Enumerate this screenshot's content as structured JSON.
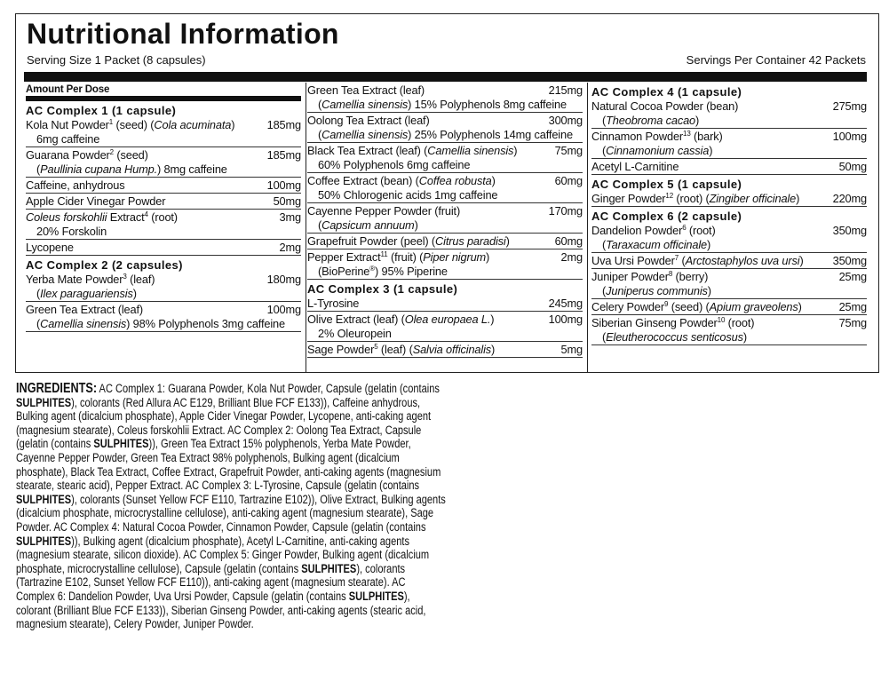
{
  "header": {
    "title": "Nutritional Information",
    "serving_size": "Serving Size 1 Packet (8 capsules)",
    "servings_per_container": "Servings Per Container 42 Packets"
  },
  "columns": [
    [
      {
        "heading": "Amount Per Dose"
      },
      {
        "section": "AC Complex 1 (1 capsule)"
      },
      {
        "name": [
          "Kola Nut Powder",
          {
            "sup": "1"
          },
          " (seed) (",
          {
            "italic": "Cola acuminata"
          },
          ")"
        ],
        "amount": "185mg",
        "detail": [
          "6mg caffeine"
        ]
      },
      {
        "name": [
          "Guarana Powder",
          {
            "sup": "2"
          },
          " (seed)"
        ],
        "amount": "185mg",
        "detail": [
          "(",
          {
            "italic": "Paullinia cupana Hump."
          },
          ") 8mg caffeine"
        ]
      },
      {
        "name": [
          "Caffeine, anhydrous"
        ],
        "amount": "100mg"
      },
      {
        "name": [
          "Apple Cider Vinegar Powder"
        ],
        "amount": "50mg"
      },
      {
        "name": [
          {
            "italic": "Coleus forskohlii"
          },
          " Extract",
          {
            "sup": "4"
          },
          " (root)"
        ],
        "amount": "3mg",
        "detail": [
          "20% Forskolin"
        ]
      },
      {
        "name": [
          "Lycopene"
        ],
        "amount": "2mg"
      },
      {
        "section": "AC Complex 2 (2 capsules)"
      },
      {
        "name": [
          "Yerba Mate Powder",
          {
            "sup": "3"
          },
          " (leaf)"
        ],
        "amount": "180mg",
        "detail": [
          "(",
          {
            "italic": "Ilex paraguariensis"
          },
          ")"
        ]
      },
      {
        "name": [
          "Green Tea Extract (leaf)"
        ],
        "amount": "100mg",
        "detail": [
          "(",
          {
            "italic": "Camellia sinensis"
          },
          ") 98% Polyphenols 3mg caffeine"
        ]
      }
    ],
    [
      {
        "name": [
          "Green Tea Extract (leaf)"
        ],
        "amount": "215mg",
        "detail": [
          "(",
          {
            "italic": "Camellia sinensis"
          },
          ") 15% Polyphenols 8mg caffeine"
        ]
      },
      {
        "name": [
          "Oolong Tea Extract (leaf)"
        ],
        "amount": "300mg",
        "detail": [
          "(",
          {
            "italic": "Camellia sinensis"
          },
          ") 25% Polyphenols 14mg caffeine"
        ]
      },
      {
        "name": [
          "Black Tea Extract (leaf) (",
          {
            "italic": "Camellia sinensis"
          },
          ")"
        ],
        "amount": "75mg",
        "detail": [
          "60% Polyphenols 6mg caffeine"
        ]
      },
      {
        "name": [
          "Coffee Extract (bean) (",
          {
            "italic": "Coffea robusta"
          },
          ")"
        ],
        "amount": "60mg",
        "detail": [
          "50% Chlorogenic acids 1mg caffeine"
        ]
      },
      {
        "name": [
          "Cayenne Pepper Powder (fruit)"
        ],
        "amount": "170mg",
        "detail": [
          "(",
          {
            "italic": "Capsicum annuum"
          },
          ")"
        ]
      },
      {
        "name": [
          "Grapefruit Powder (peel) (",
          {
            "italic": "Citrus paradisi"
          },
          ")"
        ],
        "amount": "60mg"
      },
      {
        "name": [
          "Pepper Extract",
          {
            "sup": "11"
          },
          " (fruit) (",
          {
            "italic": "Piper nigrum"
          },
          ")"
        ],
        "amount": "2mg",
        "detail": [
          "(BioPerine",
          {
            "sup": "®"
          },
          ") 95% Piperine"
        ]
      },
      {
        "section": "AC Complex 3 (1 capsule)"
      },
      {
        "name": [
          "L-Tyrosine"
        ],
        "amount": "245mg"
      },
      {
        "name": [
          "Olive Extract (leaf) (",
          {
            "italic": "Olea europaea L."
          },
          ")"
        ],
        "amount": "100mg",
        "detail": [
          "2% Oleuropein"
        ]
      },
      {
        "name": [
          "Sage Powder",
          {
            "sup": "5"
          },
          " (leaf) (",
          {
            "italic": "Salvia officinalis"
          },
          ")"
        ],
        "amount": "5mg"
      }
    ],
    [
      {
        "section": "AC Complex 4 (1 capsule)"
      },
      {
        "name": [
          "Natural Cocoa Powder (bean)"
        ],
        "amount": "275mg",
        "detail": [
          "(",
          {
            "italic": "Theobroma cacao"
          },
          ")"
        ]
      },
      {
        "name": [
          "Cinnamon Powder",
          {
            "sup": "13"
          },
          " (bark)"
        ],
        "amount": "100mg",
        "detail": [
          "(",
          {
            "italic": "Cinnamonium cassia"
          },
          ")"
        ]
      },
      {
        "name": [
          "Acetyl L-Carnitine"
        ],
        "amount": "50mg"
      },
      {
        "section": "AC Complex 5 (1 capsule)"
      },
      {
        "name": [
          "Ginger Powder",
          {
            "sup": "12"
          },
          " (root) (",
          {
            "italic": "Zingiber officinale"
          },
          ")"
        ],
        "amount": "220mg"
      },
      {
        "section": "AC Complex 6 (2 capsule)"
      },
      {
        "name": [
          "Dandelion Powder",
          {
            "sup": "6"
          },
          " (root)"
        ],
        "amount": "350mg",
        "detail": [
          "(",
          {
            "italic": "Taraxacum officinale"
          },
          ")"
        ]
      },
      {
        "name": [
          "Uva Ursi Powder",
          {
            "sup": "7"
          },
          " (",
          {
            "italic": "Arctostaphylos uva ursi"
          },
          ")"
        ],
        "amount": "350mg"
      },
      {
        "name": [
          "Juniper Powder",
          {
            "sup": "8"
          },
          " (berry)"
        ],
        "amount": "25mg",
        "detail": [
          "(",
          {
            "italic": "Juniperus communis"
          },
          ")"
        ]
      },
      {
        "name": [
          "Celery Powder",
          {
            "sup": "9"
          },
          " (seed) (",
          {
            "italic": "Apium graveolens"
          },
          ")"
        ],
        "amount": "25mg"
      },
      {
        "name": [
          "Siberian Ginseng Powder",
          {
            "sup": "10"
          },
          " (root)"
        ],
        "amount": "75mg",
        "detail": [
          "(",
          {
            "italic": "Eleutherococcus senticosus"
          },
          ")"
        ]
      }
    ]
  ],
  "ingredients": [
    {
      "bold": "INGREDIENTS:"
    },
    " AC Complex 1: Guarana Powder, Kola Nut Powder, Capsule (gelatin (contains ",
    {
      "bold": "SULPHITES"
    },
    "), colorants (Red Allura AC E129, Brilliant Blue FCF E133)), Caffeine anhydrous, Bulking agent (dicalcium phosphate), Apple Cider Vinegar Powder, Lycopene, anti-caking agent (magnesium stearate), Coleus forskohlii Extract. AC Complex 2: Oolong Tea Extract, Capsule (gelatin (contains ",
    {
      "bold": "SULPHITES"
    },
    ")), Green Tea Extract 15% polyphenols, Yerba Mate Powder, Cayenne Pepper Powder, Green Tea Extract 98% polyphenols, Bulking agent (dicalcium phosphate), Black Tea Extract, Coffee Extract, Grapefruit Powder, anti-caking agents (magnesium stearate, stearic acid), Pepper Extract. AC Complex 3: L-Tyrosine, Capsule (gelatin (contains ",
    {
      "bold": "SULPHITES"
    },
    "), colorants (Sunset Yellow FCF E110, Tartrazine E102)), Olive Extract, Bulking agents (dicalcium phosphate, microcrystalline cellulose), anti-caking agent (magnesium stearate), Sage Powder. AC Complex 4: Natural Cocoa Powder, Cinnamon Powder, Capsule (gelatin (contains ",
    {
      "bold": "SULPHITES"
    },
    ")), Bulking agent (dicalcium phosphate), Acetyl L-Carnitine, anti-caking agents (magnesium stearate, silicon dioxide). AC Complex 5: Ginger Powder, Bulking agent (dicalcium phosphate, microcrystalline cellulose), Capsule (gelatin (contains ",
    {
      "bold": "SULPHITES"
    },
    "), colorants (Tartrazine E102, Sunset Yellow FCF E110)), anti-caking agent (magnesium stearate). AC Complex 6: Dandelion Powder, Uva Ursi Powder, Capsule (gelatin (contains ",
    {
      "bold": "SULPHITES"
    },
    "), colorant (Brilliant Blue FCF E133)), Siberian Ginseng Powder, anti-caking agents (stearic acid, magnesium stearate), Celery Powder, Juniper Powder."
  ]
}
